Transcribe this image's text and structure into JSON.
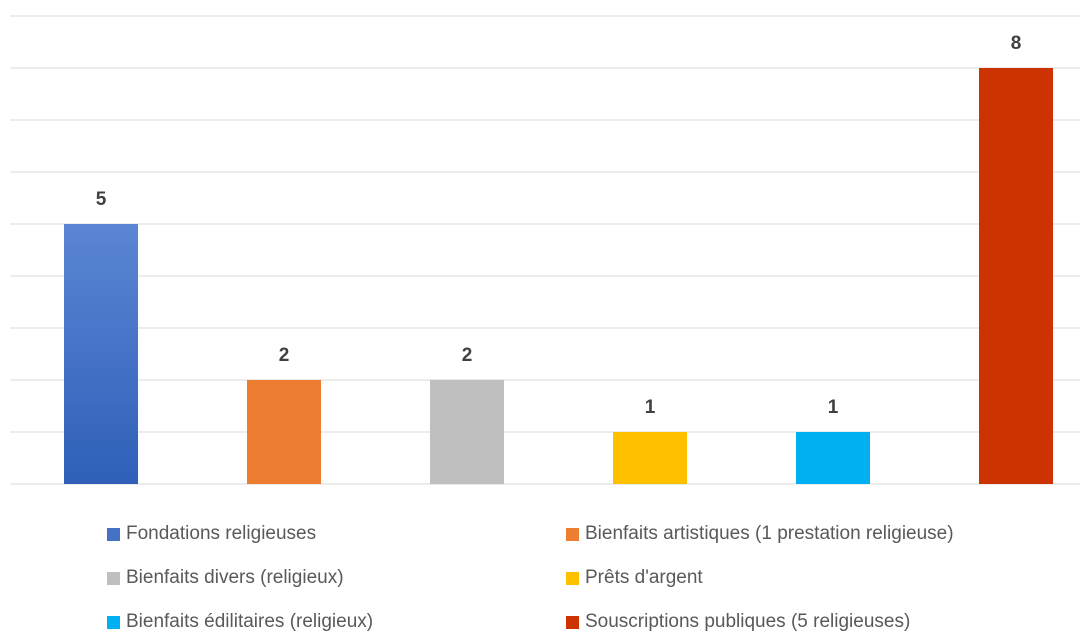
{
  "chart_data": {
    "type": "bar",
    "categories": [
      "Fondations religieuses",
      "Bienfaits artistiques (1 prestation religieuse)",
      "Bienfaits divers (religieux)",
      "Prêts d'argent",
      "Bienfaits édilitaires (religieux)",
      "Souscriptions publiques (5 religieuses)"
    ],
    "values": [
      5,
      2,
      2,
      1,
      1,
      8
    ],
    "data_labels": [
      "5",
      "2",
      "2",
      "1",
      "1",
      "8"
    ],
    "colors": [
      "#4472C4",
      "#ED7D31",
      "#BFBFBF",
      "#FFC000",
      "#00B0F0",
      "#CC3300"
    ],
    "ylim": [
      0,
      9
    ],
    "grid": true,
    "legend_position": "bottom",
    "title": "",
    "xlabel": "",
    "ylabel": ""
  }
}
